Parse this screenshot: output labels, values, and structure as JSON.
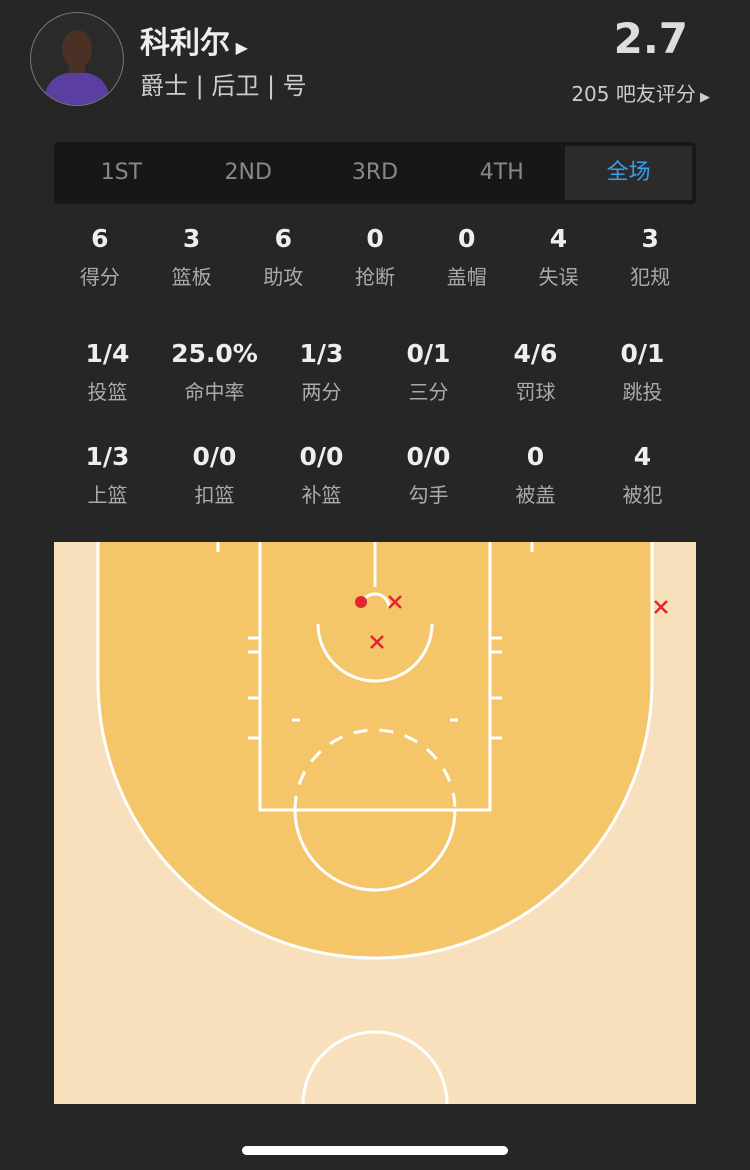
{
  "player": {
    "name": "科利尔",
    "subtitle": "爵士 | 后卫 | 号",
    "rating": "2.7",
    "votes": "205 吧友评分"
  },
  "tabs": [
    {
      "label": "1ST"
    },
    {
      "label": "2ND"
    },
    {
      "label": "3RD"
    },
    {
      "label": "4TH"
    },
    {
      "label": "全场",
      "active": true
    }
  ],
  "stats1": [
    {
      "v": "6",
      "l": "得分"
    },
    {
      "v": "3",
      "l": "篮板"
    },
    {
      "v": "6",
      "l": "助攻"
    },
    {
      "v": "0",
      "l": "抢断"
    },
    {
      "v": "0",
      "l": "盖帽"
    },
    {
      "v": "4",
      "l": "失误"
    },
    {
      "v": "3",
      "l": "犯规"
    }
  ],
  "stats2": [
    {
      "v": "1/4",
      "l": "投篮"
    },
    {
      "v": "25.0%",
      "l": "命中率"
    },
    {
      "v": "1/3",
      "l": "两分"
    },
    {
      "v": "0/1",
      "l": "三分"
    },
    {
      "v": "4/6",
      "l": "罚球"
    },
    {
      "v": "0/1",
      "l": "跳投"
    }
  ],
  "stats3": [
    {
      "v": "1/3",
      "l": "上篮"
    },
    {
      "v": "0/0",
      "l": "扣篮"
    },
    {
      "v": "0/0",
      "l": "补篮"
    },
    {
      "v": "0/0",
      "l": "勾手"
    },
    {
      "v": "0",
      "l": "被盖"
    },
    {
      "v": "4",
      "l": "被犯"
    }
  ],
  "shots": [
    {
      "result": "made"
    },
    {
      "result": "missed"
    },
    {
      "result": "missed"
    },
    {
      "result": "missed"
    }
  ],
  "colors": {
    "accent": "#3b9ee8",
    "court_inner": "#f5c56a",
    "court_outer": "#f8e0bc",
    "shot": "#e0262e"
  }
}
